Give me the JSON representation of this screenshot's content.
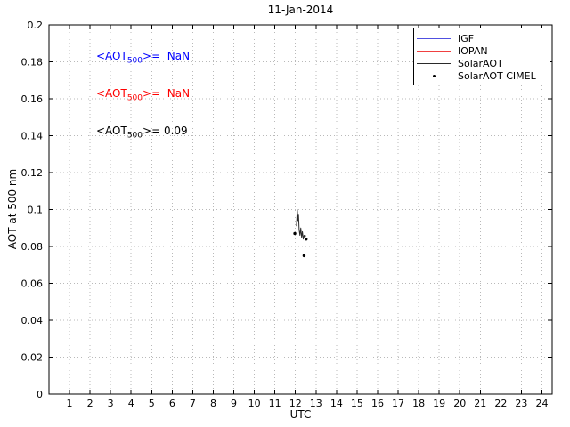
{
  "chart_data": {
    "type": "line",
    "title": "11-Jan-2014",
    "xlabel": "UTC",
    "ylabel": "AOT at 500 nm",
    "xlim": [
      0,
      24.5
    ],
    "ylim": [
      0,
      0.2
    ],
    "grid": true,
    "legend_position": "top-right",
    "xticks": [
      1,
      2,
      3,
      4,
      5,
      6,
      7,
      8,
      9,
      10,
      11,
      12,
      13,
      14,
      15,
      16,
      17,
      18,
      19,
      20,
      21,
      22,
      23,
      24
    ],
    "xtick_labels": [
      "1",
      "2",
      "3",
      "4",
      "5",
      "6",
      "7",
      "8",
      "9",
      "10",
      "11",
      "12",
      "13",
      "14",
      "15",
      "16",
      "17",
      "18",
      "19",
      "20",
      "21",
      "22",
      "23",
      "24"
    ],
    "yticks": [
      0,
      0.02,
      0.04,
      0.06,
      0.08,
      0.1,
      0.12,
      0.14,
      0.16,
      0.18,
      0.2
    ],
    "ytick_labels": [
      "0",
      "0.02",
      "0.04",
      "0.06",
      "0.08",
      "0.1",
      "0.12",
      "0.14",
      "0.16",
      "0.18",
      "0.2"
    ],
    "series": [
      {
        "name": "IGF",
        "style": "line",
        "color": "#5050e0",
        "x": [],
        "y": []
      },
      {
        "name": "IOPAN",
        "style": "line",
        "color": "#f04040",
        "x": [],
        "y": []
      },
      {
        "name": "SolarAOT",
        "style": "line",
        "color": "#2a2a2a",
        "x": [
          12.05,
          12.09,
          12.12,
          12.15,
          12.18,
          12.22,
          12.26,
          12.3,
          12.34,
          12.38,
          12.42,
          12.46,
          12.5
        ],
        "y": [
          0.091,
          0.1,
          0.094,
          0.097,
          0.089,
          0.086,
          0.09,
          0.085,
          0.088,
          0.084,
          0.086,
          0.085,
          0.086
        ]
      },
      {
        "name": "SolarAOT CIMEL",
        "style": "marker",
        "color": "#000000",
        "x": [
          11.97,
          12.42,
          12.52
        ],
        "y": [
          0.087,
          0.075,
          0.084
        ]
      }
    ],
    "annotations": [
      {
        "pre": "<AOT",
        "sub": "500",
        "post": ">=  NaN",
        "color": "#0000ff"
      },
      {
        "pre": "<AOT",
        "sub": "500",
        "post": ">=  NaN",
        "color": "#ff0000"
      },
      {
        "pre": "<AOT",
        "sub": "500",
        "post": ">= 0.09",
        "color": "#000000"
      }
    ]
  }
}
